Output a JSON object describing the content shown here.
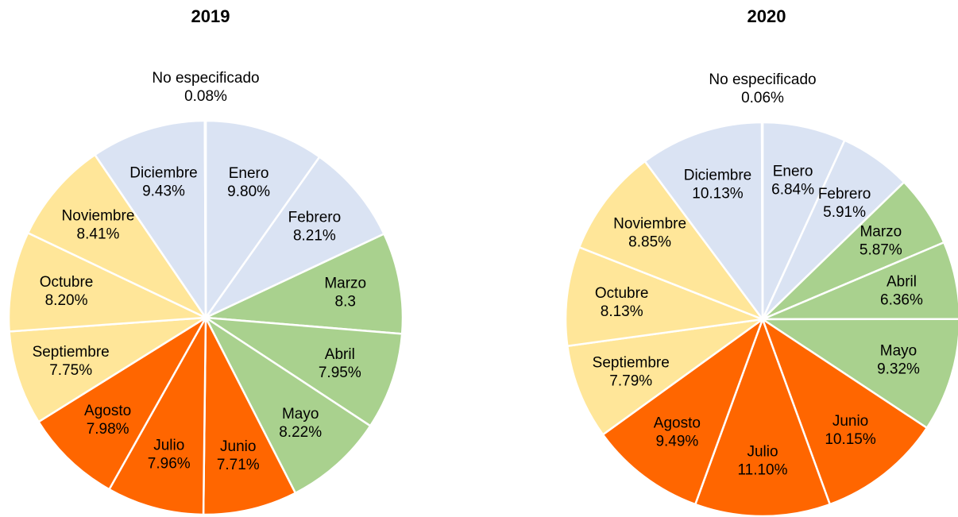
{
  "chart_data": [
    {
      "type": "pie",
      "title": "2019",
      "categories": [
        "Enero",
        "Febrero",
        "Marzo",
        "Abril",
        "Mayo",
        "Junio",
        "Julio",
        "Agosto",
        "Septiembre",
        "Octubre",
        "Noviembre",
        "Diciembre",
        "No especificado"
      ],
      "values": [
        9.8,
        8.21,
        8.3,
        7.95,
        8.22,
        7.71,
        7.96,
        7.98,
        7.75,
        8.2,
        8.41,
        9.43,
        0.08
      ],
      "value_labels": [
        "9.80%",
        "8.21%",
        "8.3",
        "7.95%",
        "8.22%",
        "7.71%",
        "7.96%",
        "7.98%",
        "7.75%",
        "8.20%",
        "8.41%",
        "9.43%",
        "0.08%"
      ],
      "colors": [
        "#dae3f3",
        "#dae3f3",
        "#a9d18e",
        "#a9d18e",
        "#a9d18e",
        "#ff6600",
        "#ff6600",
        "#ff6600",
        "#ffe699",
        "#ffe699",
        "#ffe699",
        "#dae3f3",
        "#dae3f3"
      ]
    },
    {
      "type": "pie",
      "title": "2020",
      "categories": [
        "Enero",
        "Febrero",
        "Marzo",
        "Abril",
        "Mayo",
        "Junio",
        "Julio",
        "Agosto",
        "Septiembre",
        "Octubre",
        "Noviembre",
        "Diciembre",
        "No especificado"
      ],
      "values": [
        6.84,
        5.91,
        5.87,
        6.36,
        9.32,
        10.15,
        11.1,
        9.49,
        7.79,
        8.13,
        8.85,
        10.13,
        0.06
      ],
      "value_labels": [
        "6.84%",
        "5.91%",
        "5.87%",
        "6.36%",
        "9.32%",
        "10.15%",
        "11.10%",
        "9.49%",
        "7.79%",
        "8.13%",
        "8.85%",
        "10.13%",
        "0.06%"
      ],
      "colors": [
        "#dae3f3",
        "#dae3f3",
        "#a9d18e",
        "#a9d18e",
        "#a9d18e",
        "#ff6600",
        "#ff6600",
        "#ff6600",
        "#ffe699",
        "#ffe699",
        "#ffe699",
        "#dae3f3",
        "#dae3f3"
      ]
    }
  ]
}
